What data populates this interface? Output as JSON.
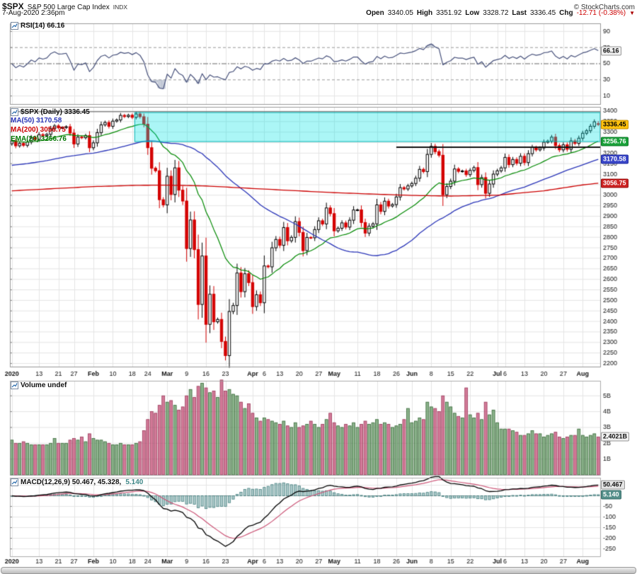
{
  "header": {
    "symbol": "$SPX",
    "title": "S&P 500 Large Cap Index",
    "exchange": "INDX",
    "copyright": "© StockCharts.com",
    "timestamp": "7-Aug-2020 2:36pm",
    "quote": {
      "open_label": "Open",
      "open": "3340.05",
      "high_label": "High",
      "high": "3351.92",
      "low_label": "Low",
      "low": "3328.72",
      "last_label": "Last",
      "last": "3336.45",
      "chg_label": "Chg",
      "chg_value": "-12.71 (-0.38%)",
      "chg_arrow": "▼"
    }
  },
  "legends": {
    "rsi": "RSI(14) 66.16",
    "price_main": "$SPX (Daily) 3336.45",
    "ma50": "MA(50) 3170.58",
    "ma200": "MA(200) 3056.75",
    "ema20": "EMA(20) 3256.76",
    "volume": "Volume undef",
    "macd_main": "MACD(12,26,9) 50.467, 45.328,",
    "macd_hist": "5.140"
  },
  "markers": [
    {
      "name": "rsi-value-marker",
      "panel": "rsi",
      "value": 66.16,
      "label": "66.16",
      "bg": "#f0f0f0",
      "fg": "#111111",
      "border": "#999999"
    },
    {
      "name": "last-price-marker",
      "panel": "price",
      "value": 3336.45,
      "label": "3336.45",
      "bg": "#ffc20e",
      "fg": "#000000",
      "border": "#c79100"
    },
    {
      "name": "ema20-marker",
      "panel": "price",
      "value": 3256.76,
      "label": "3256.76",
      "bg": "#18a038",
      "fg": "#ffffff",
      "border": "#0f7a28"
    },
    {
      "name": "ma50-marker",
      "panel": "price",
      "value": 3170.58,
      "label": "3170.58",
      "bg": "#3946c8",
      "fg": "#ffffff",
      "border": "#222fa0"
    },
    {
      "name": "ma200-marker",
      "panel": "price",
      "value": 3056.75,
      "label": "3056.75",
      "bg": "#cc2222",
      "fg": "#ffffff",
      "border": "#991414"
    },
    {
      "name": "volume-value-marker",
      "panel": "vol",
      "value": 2.4021,
      "label": "2.4021B",
      "bg": "#f0f0f0",
      "fg": "#111111",
      "border": "#999999"
    },
    {
      "name": "macd-value-marker",
      "panel": "macd",
      "value": 50.467,
      "label": "50.467",
      "bg": "#e4e4e4",
      "fg": "#111111",
      "border": "#999999"
    },
    {
      "name": "macd-hist-marker",
      "panel": "macd",
      "value": 5.14,
      "label": "5.140",
      "bg": "#548f8a",
      "fg": "#ffffff",
      "border": "#3a6f6b"
    }
  ],
  "colors": {
    "up_candle": "#000000",
    "up_fill": "#ffffff",
    "down_candle": "#d40000",
    "ma50": "#2a35b8",
    "ma200": "#cc0000",
    "ema20": "#008800",
    "rsi_line": "#47517b",
    "rsi_fill": "rgba(154,166,187,0.55)",
    "vol_up_fill": "rgba(102,153,102,0.75)",
    "vol_up_stroke": "#336633",
    "vol_down_fill": "rgba(196,80,120,0.75)",
    "vol_down_stroke": "#993355",
    "macd_line": "#000000",
    "macd_signal": "#cc5577",
    "macd_hist_fill": "rgba(79,143,143,0.45)",
    "macd_hist_stroke": "#447f7f",
    "band_fill": "rgba(0,229,229,0.33)",
    "band_stroke": "#00b2b2",
    "trendline": "#111111",
    "grid": "#e5e5e5",
    "panel_border": "#999999",
    "axis_text": "#111111"
  },
  "chart_data": {
    "type": "candlestick",
    "title": "$SPX (Daily)",
    "dates": [
      "1/2",
      "1/3",
      "1/6",
      "1/7",
      "1/8",
      "1/9",
      "1/10",
      "1/13",
      "1/14",
      "1/15",
      "1/16",
      "1/17",
      "1/21",
      "1/22",
      "1/23",
      "1/24",
      "1/27",
      "1/28",
      "1/29",
      "1/30",
      "1/31",
      "2/3",
      "2/4",
      "2/5",
      "2/6",
      "2/7",
      "2/10",
      "2/11",
      "2/12",
      "2/13",
      "2/14",
      "2/18",
      "2/19",
      "2/20",
      "2/21",
      "2/24",
      "2/25",
      "2/26",
      "2/27",
      "2/28",
      "3/2",
      "3/3",
      "3/4",
      "3/5",
      "3/6",
      "3/9",
      "3/10",
      "3/11",
      "3/12",
      "3/13",
      "3/16",
      "3/17",
      "3/18",
      "3/19",
      "3/20",
      "3/23",
      "3/24",
      "3/25",
      "3/26",
      "3/27",
      "3/30",
      "3/31",
      "4/1",
      "4/2",
      "4/3",
      "4/6",
      "4/7",
      "4/8",
      "4/9",
      "4/13",
      "4/14",
      "4/15",
      "4/16",
      "4/17",
      "4/20",
      "4/21",
      "4/22",
      "4/23",
      "4/24",
      "4/27",
      "4/28",
      "4/29",
      "4/30",
      "5/1",
      "5/4",
      "5/5",
      "5/6",
      "5/7",
      "5/8",
      "5/11",
      "5/12",
      "5/13",
      "5/14",
      "5/15",
      "5/18",
      "5/19",
      "5/20",
      "5/21",
      "5/22",
      "5/26",
      "5/27",
      "5/28",
      "5/29",
      "6/1",
      "6/2",
      "6/3",
      "6/4",
      "6/5",
      "6/8",
      "6/9",
      "6/10",
      "6/11",
      "6/12",
      "6/15",
      "6/16",
      "6/17",
      "6/18",
      "6/19",
      "6/22",
      "6/23",
      "6/24",
      "6/25",
      "6/26",
      "6/29",
      "6/30",
      "7/1",
      "7/2",
      "7/6",
      "7/7",
      "7/8",
      "7/9",
      "7/10",
      "7/13",
      "7/14",
      "7/15",
      "7/16",
      "7/17",
      "7/20",
      "7/21",
      "7/22",
      "7/23",
      "7/24",
      "7/27",
      "7/28",
      "7/29",
      "7/30",
      "7/31",
      "8/3",
      "8/4",
      "8/5",
      "8/6",
      "8/7"
    ],
    "close": [
      3257.85,
      3234.85,
      3246.28,
      3237.18,
      3253.05,
      3274.7,
      3265.35,
      3288.13,
      3283.15,
      3289.29,
      3316.81,
      3329.62,
      3320.79,
      3321.75,
      3325.54,
      3295.47,
      3243.63,
      3276.24,
      3273.4,
      3283.66,
      3225.52,
      3248.92,
      3297.59,
      3334.69,
      3345.78,
      3327.71,
      3352.09,
      3357.75,
      3379.45,
      3373.94,
      3380.16,
      3370.29,
      3386.15,
      3373.23,
      3337.75,
      3225.89,
      3128.21,
      3116.39,
      2978.76,
      2954.22,
      3090.23,
      3003.37,
      3130.12,
      3023.94,
      2972.37,
      2746.56,
      2882.23,
      2741.38,
      2480.64,
      2711.02,
      2386.13,
      2529.19,
      2398.1,
      2409.39,
      2304.92,
      2237.4,
      2447.33,
      2475.56,
      2630.07,
      2541.47,
      2626.65,
      2584.59,
      2470.5,
      2526.9,
      2488.65,
      2663.68,
      2659.41,
      2749.98,
      2789.82,
      2761.63,
      2846.06,
      2783.36,
      2799.55,
      2874.56,
      2823.16,
      2736.56,
      2799.31,
      2797.8,
      2836.74,
      2878.48,
      2863.39,
      2939.51,
      2912.43,
      2830.71,
      2842.74,
      2868.44,
      2848.42,
      2881.19,
      2929.8,
      2930.32,
      2870.12,
      2820.0,
      2852.5,
      2863.7,
      2953.91,
      2922.94,
      2971.61,
      2948.51,
      2955.45,
      2991.77,
      3036.13,
      3029.73,
      3044.31,
      3055.73,
      3080.82,
      3122.87,
      3112.35,
      3193.93,
      3232.39,
      3207.18,
      3190.14,
      3002.1,
      3041.31,
      3066.59,
      3124.74,
      3113.49,
      3115.34,
      3097.74,
      3117.86,
      3131.29,
      3050.33,
      3083.76,
      3009.05,
      3053.24,
      3100.29,
      3115.86,
      3130.01,
      3179.72,
      3145.32,
      3169.94,
      3152.05,
      3185.04,
      3155.22,
      3197.52,
      3226.56,
      3215.57,
      3224.73,
      3251.84,
      3257.3,
      3276.02,
      3235.66,
      3215.63,
      3239.41,
      3218.44,
      3258.44,
      3246.22,
      3271.12,
      3294.61,
      3306.51,
      3327.77,
      3349.16,
      3336.45
    ],
    "volume_billions": [
      2.2,
      2.0,
      2.0,
      2.1,
      2.0,
      1.9,
      1.9,
      1.9,
      1.9,
      1.9,
      2.0,
      2.3,
      2.0,
      2.0,
      2.0,
      2.2,
      2.3,
      2.2,
      2.4,
      2.1,
      2.6,
      2.3,
      2.2,
      2.2,
      2.1,
      2.0,
      1.9,
      1.9,
      2.0,
      1.9,
      1.9,
      1.9,
      2.0,
      2.1,
      2.8,
      3.5,
      4.0,
      3.9,
      4.4,
      5.0,
      4.6,
      4.7,
      4.4,
      4.1,
      4.3,
      5.0,
      5.4,
      4.9,
      5.6,
      5.8,
      5.5,
      5.2,
      5.3,
      4.9,
      6.0,
      5.3,
      5.4,
      5.1,
      5.0,
      4.6,
      4.2,
      4.5,
      3.9,
      3.6,
      3.4,
      3.6,
      3.5,
      3.4,
      3.3,
      3.2,
      3.4,
      3.1,
      3.0,
      3.3,
      3.0,
      3.1,
      3.2,
      3.4,
      3.2,
      3.0,
      3.2,
      3.5,
      3.9,
      3.3,
      3.1,
      3.0,
      3.2,
      3.1,
      3.3,
      3.0,
      3.2,
      3.4,
      3.2,
      3.3,
      3.5,
      3.2,
      3.3,
      3.2,
      3.0,
      3.1,
      3.2,
      3.5,
      4.2,
      3.3,
      3.4,
      3.6,
      3.5,
      4.6,
      4.3,
      4.2,
      4.0,
      5.0,
      4.6,
      4.3,
      3.9,
      3.7,
      3.6,
      5.5,
      3.8,
      3.6,
      3.9,
      3.5,
      4.6,
      3.8,
      4.1,
      3.3,
      2.9,
      2.9,
      2.9,
      2.8,
      2.7,
      2.5,
      2.5,
      2.6,
      2.8,
      2.6,
      2.6,
      2.4,
      2.5,
      2.6,
      2.7,
      2.4,
      2.3,
      2.4,
      2.5,
      2.5,
      2.9,
      2.5,
      2.4,
      2.5,
      2.6,
      2.4
    ],
    "last_bar": {
      "open": 3340.05,
      "high": 3351.92,
      "low": 3328.72,
      "close": 3336.45
    },
    "first_open": 3244.67,
    "ticks": [
      {
        "i": 0,
        "l": "2020",
        "b": true
      },
      {
        "i": 7,
        "l": "13"
      },
      {
        "i": 12,
        "l": "21"
      },
      {
        "i": 16,
        "l": "27"
      },
      {
        "i": 21,
        "l": "Feb",
        "b": true
      },
      {
        "i": 26,
        "l": "10"
      },
      {
        "i": 31,
        "l": "18"
      },
      {
        "i": 35,
        "l": "24"
      },
      {
        "i": 40,
        "l": "Mar",
        "b": true
      },
      {
        "i": 45,
        "l": "9"
      },
      {
        "i": 50,
        "l": "16"
      },
      {
        "i": 55,
        "l": "23"
      },
      {
        "i": 62,
        "l": "Apr",
        "b": true
      },
      {
        "i": 65,
        "l": "6"
      },
      {
        "i": 69,
        "l": "13"
      },
      {
        "i": 74,
        "l": "20"
      },
      {
        "i": 79,
        "l": "27"
      },
      {
        "i": 83,
        "l": "May",
        "b": true
      },
      {
        "i": 89,
        "l": "11"
      },
      {
        "i": 94,
        "l": "18"
      },
      {
        "i": 99,
        "l": "26"
      },
      {
        "i": 103,
        "l": "Jun",
        "b": true
      },
      {
        "i": 108,
        "l": "8"
      },
      {
        "i": 113,
        "l": "15"
      },
      {
        "i": 118,
        "l": "22"
      },
      {
        "i": 125,
        "l": "Jul",
        "b": true
      },
      {
        "i": 127,
        "l": "6"
      },
      {
        "i": 132,
        "l": "13"
      },
      {
        "i": 137,
        "l": "20"
      },
      {
        "i": 142,
        "l": "27"
      },
      {
        "i": 147,
        "l": "Aug",
        "b": true
      }
    ],
    "ma200_anchors": [
      [
        0,
        3021
      ],
      [
        21,
        3041
      ],
      [
        32,
        3047
      ],
      [
        40,
        3048
      ],
      [
        50,
        3044
      ],
      [
        62,
        3032
      ],
      [
        83,
        3012
      ],
      [
        103,
        2999
      ],
      [
        113,
        2996
      ],
      [
        125,
        3000
      ],
      [
        137,
        3021
      ],
      [
        147,
        3049
      ],
      [
        151,
        3057
      ]
    ],
    "panels": [
      {
        "name": "rsi",
        "type": "line",
        "label": "RSI(14)",
        "last": 66.16,
        "levels": [
          70,
          50,
          30
        ],
        "yticks": [
          90,
          70,
          50,
          30,
          10
        ],
        "ylim": [
          0,
          100
        ]
      },
      {
        "name": "price",
        "type": "candlestick",
        "label": "$SPX (Daily)",
        "last": 3336.45,
        "overlays": [
          {
            "name": "MA(50)",
            "last": 3170.58
          },
          {
            "name": "MA(200)",
            "last": 3056.75
          },
          {
            "name": "EMA(20)",
            "last": 3256.76
          }
        ],
        "ytick_min": 2200,
        "ytick_max": 3400,
        "ytick_step": 50,
        "ylim": [
          2185,
          3420
        ],
        "annotations": [
          {
            "type": "hline",
            "value": 3397
          },
          {
            "type": "rect",
            "from_index": 32,
            "to_end": true,
            "y_top": 3393,
            "y_bottom": 3255
          },
          {
            "type": "segment",
            "from_index": 99,
            "to_end": true,
            "value": 3228
          }
        ]
      },
      {
        "name": "vol",
        "type": "bar",
        "label": "Volume",
        "last": "2.4021B",
        "yticks": [
          5,
          4,
          3,
          2,
          1
        ],
        "ytick_suffix": "B",
        "ylim": [
          0,
          5.95
        ]
      },
      {
        "name": "macd",
        "type": "line+histogram",
        "label": "MACD(12,26,9)",
        "last": [
          50.467,
          45.328,
          5.14
        ],
        "yticks": [
          50,
          0,
          -50,
          -100,
          -150,
          -200,
          -250
        ],
        "ylim": [
          -285,
          85
        ]
      }
    ]
  }
}
